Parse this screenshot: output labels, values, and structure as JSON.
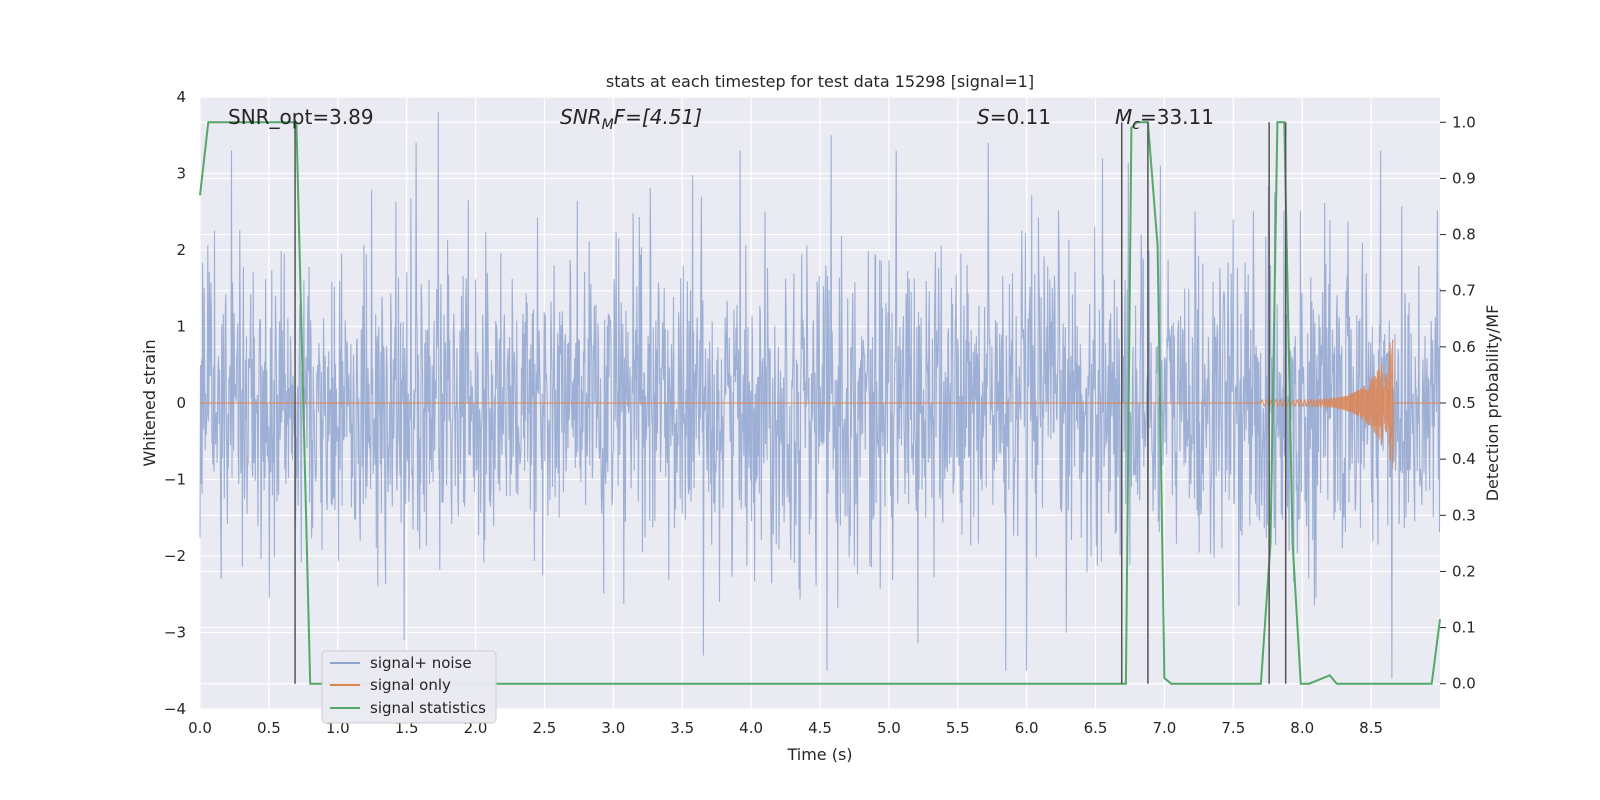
{
  "chart_data": {
    "type": "line",
    "title": "stats at each timestep for test data 15298 [signal=1]",
    "xlabel": "Time (s)",
    "ylabel": "Whitened strain",
    "y2label": "Detection probability/MF",
    "xlim": [
      0.0,
      9.0
    ],
    "ylim": [
      -4.0,
      4.0
    ],
    "y2lim": [
      -0.045,
      1.045
    ],
    "xticks": [
      "0.0",
      "0.5",
      "1.0",
      "1.5",
      "2.0",
      "2.5",
      "3.0",
      "3.5",
      "4.0",
      "4.5",
      "5.0",
      "5.5",
      "6.0",
      "6.5",
      "7.0",
      "7.5",
      "8.0",
      "8.5"
    ],
    "yticks": [
      "−4",
      "−3",
      "−2",
      "−1",
      "0",
      "1",
      "2",
      "3",
      "4"
    ],
    "y2ticks": [
      "0.0",
      "0.1",
      "0.2",
      "0.3",
      "0.4",
      "0.5",
      "0.6",
      "0.7",
      "0.8",
      "0.9",
      "1.0"
    ],
    "grid": true,
    "legend_position": "lower-left",
    "annotations": {
      "snr_opt": "SNR_opt=3.89",
      "snr_mf_main": "SNR",
      "snr_mf_sub": "M",
      "snr_mf_rest": "F=[4.51]",
      "s_main": "S",
      "s_rest": "=0.11",
      "mc_main": "M",
      "mc_sub": "c",
      "mc_rest": "=33.11"
    },
    "series": [
      {
        "name": "signal+ noise",
        "color": "#8fa5cf",
        "description_level": "noise-like, amplitude mostly within ±1.7, peaks near ±3.5",
        "notable_peaks": [
          [
            1.57,
            3.4
          ],
          [
            1.73,
            3.8
          ],
          [
            4.58,
            3.5
          ],
          [
            5.72,
            3.4
          ],
          [
            6.55,
            3.2
          ],
          [
            6.97,
            3.1
          ],
          [
            8.57,
            3.3
          ],
          [
            1.48,
            -3.1
          ],
          [
            4.55,
            -3.5
          ],
          [
            5.85,
            -3.5
          ],
          [
            6.0,
            -3.5
          ],
          [
            8.65,
            -3.6
          ]
        ]
      },
      {
        "name": "signal only",
        "color": "#dd8452",
        "description_level": "flat zero until ~7.7 s then chirp growing to ±0.9 at ~8.65 s",
        "chirp": {
          "start": 7.7,
          "end": 8.66,
          "peak_amp": 0.9
        }
      },
      {
        "name": "signal statistics",
        "color": "#55a868",
        "axis": "right",
        "points": [
          [
            0.0,
            0.87
          ],
          [
            0.06,
            1.0
          ],
          [
            0.15,
            1.0
          ],
          [
            0.7,
            1.0
          ],
          [
            0.8,
            0.0
          ],
          [
            6.19,
            0.0
          ],
          [
            6.72,
            0.0
          ],
          [
            6.76,
            0.99
          ],
          [
            6.8,
            1.0
          ],
          [
            6.88,
            1.0
          ],
          [
            6.95,
            0.78
          ],
          [
            7.0,
            0.01
          ],
          [
            7.05,
            0.0
          ],
          [
            7.7,
            0.0
          ],
          [
            7.77,
            0.25
          ],
          [
            7.82,
            1.0
          ],
          [
            7.87,
            1.0
          ],
          [
            7.93,
            0.25
          ],
          [
            7.99,
            0.0
          ],
          [
            8.05,
            0.0
          ],
          [
            8.2,
            0.015
          ],
          [
            8.25,
            0.0
          ],
          [
            8.94,
            0.0
          ],
          [
            9.0,
            0.115
          ]
        ]
      }
    ],
    "vlines": [
      0.69,
      6.69,
      6.88,
      7.76,
      7.88
    ]
  },
  "legend": [
    {
      "label": "signal+ noise",
      "color": "#8fa5cf"
    },
    {
      "label": "signal only",
      "color": "#dd8452"
    },
    {
      "label": "signal statistics",
      "color": "#55a868"
    }
  ]
}
